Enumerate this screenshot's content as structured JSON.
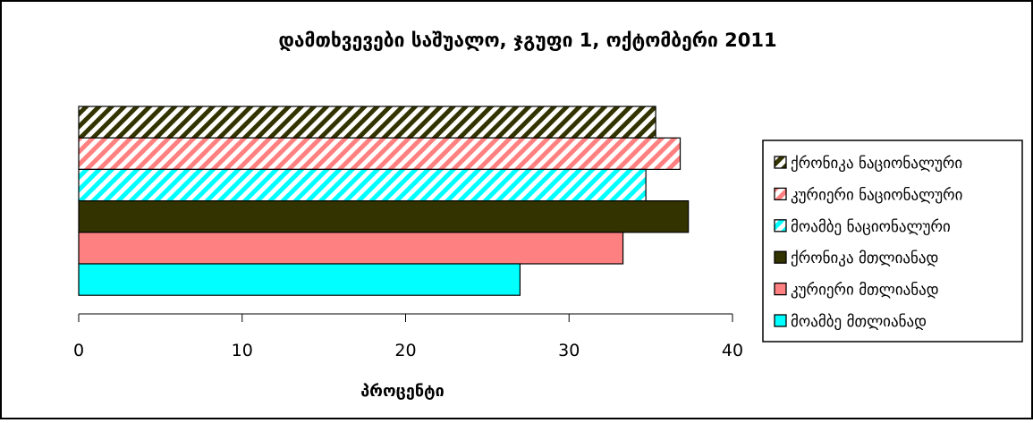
{
  "chart_data": {
    "type": "bar",
    "orientation": "horizontal",
    "title": "დამთხვევები საშუალო, ჯგუფი 1, ოქტომბერი 2011",
    "xlabel": "პროცენტი",
    "ylabel": "",
    "xlim": [
      0,
      40
    ],
    "xticks": [
      "0",
      "10",
      "20",
      "30",
      "40"
    ],
    "grid": false,
    "legend_position": "right",
    "series": [
      {
        "name": "ქრონიკა ნაციონალური",
        "value": 35.3,
        "color": "#333300",
        "pattern": "hatch-dark"
      },
      {
        "name": "კურიერი ნაციონალური",
        "value": 36.8,
        "color": "#FF8080",
        "pattern": "hatch-pink"
      },
      {
        "name": "მოამბე ნაციონალური",
        "value": 34.7,
        "color": "#00FFFF",
        "pattern": "hatch-cyan"
      },
      {
        "name": "ქრონიკა მთლიანად",
        "value": 37.3,
        "color": "#333300",
        "pattern": "solid"
      },
      {
        "name": "კურიერი მთლიანად",
        "value": 33.3,
        "color": "#FF8080",
        "pattern": "solid"
      },
      {
        "name": "მოამბე მთლიანად",
        "value": 27.0,
        "color": "#00FFFF",
        "pattern": "solid"
      }
    ]
  }
}
